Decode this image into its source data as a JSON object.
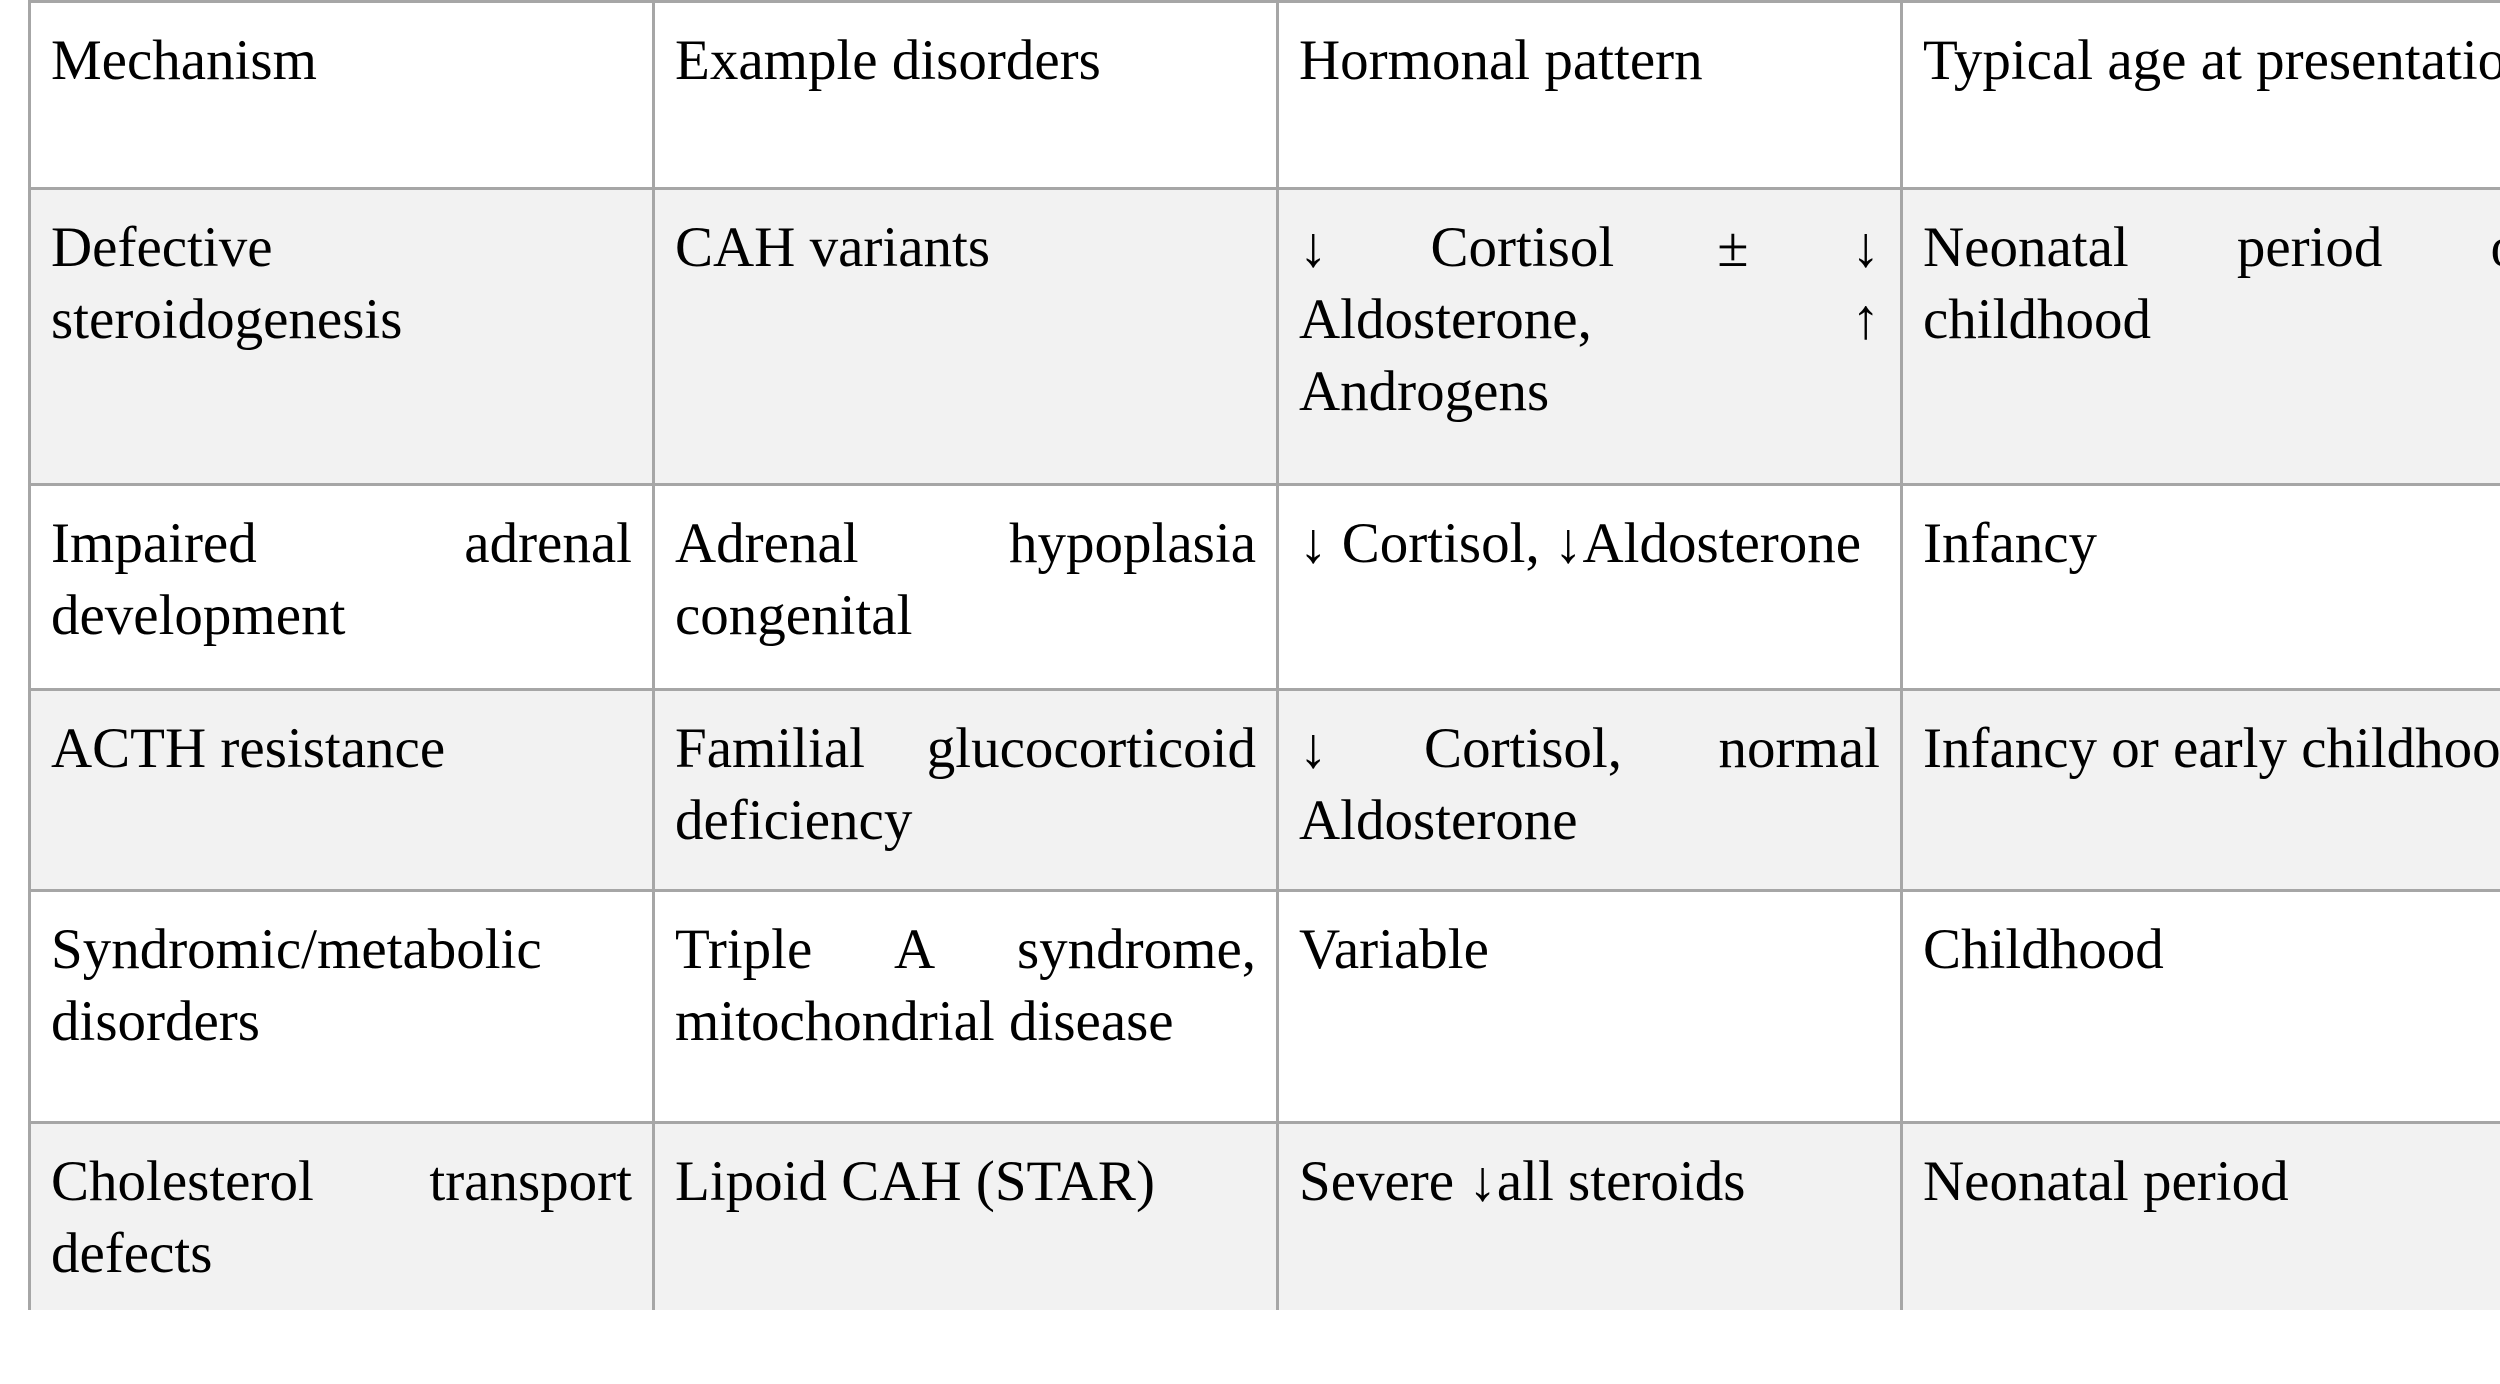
{
  "table": {
    "headers": [
      "Mechanism",
      "Example disorders",
      "Hormonal pattern",
      "Typical age at presentation"
    ],
    "rows": [
      {
        "mechanism": "Defective steroidogenesis",
        "examples": "CAH variants",
        "hormonal": "↓ Cortisol ± ↓ Aldosterone, ↑ Androgens",
        "age": "Neonatal period or childhood"
      },
      {
        "mechanism": "Impaired adrenal development",
        "examples": "Adrenal hypoplasia congenital",
        "hormonal": "↓ Cortisol, ↓Aldosterone",
        "age": "Infancy"
      },
      {
        "mechanism": "ACTH resistance",
        "examples": "Familial glucocorticoid deficiency",
        "hormonal": "↓ Cortisol, normal Aldosterone",
        "age": "Infancy or early childhood"
      },
      {
        "mechanism": "Syndromic/metabolic disorders",
        "examples": "Triple A syndrome, mitochondrial disease",
        "hormonal": "Variable",
        "age": "Childhood"
      },
      {
        "mechanism": "Cholesterol transport defects",
        "examples": "Lipoid CAH (STAR)",
        "hormonal": "Severe ↓all steroids",
        "age": "Neonatal period"
      }
    ]
  }
}
